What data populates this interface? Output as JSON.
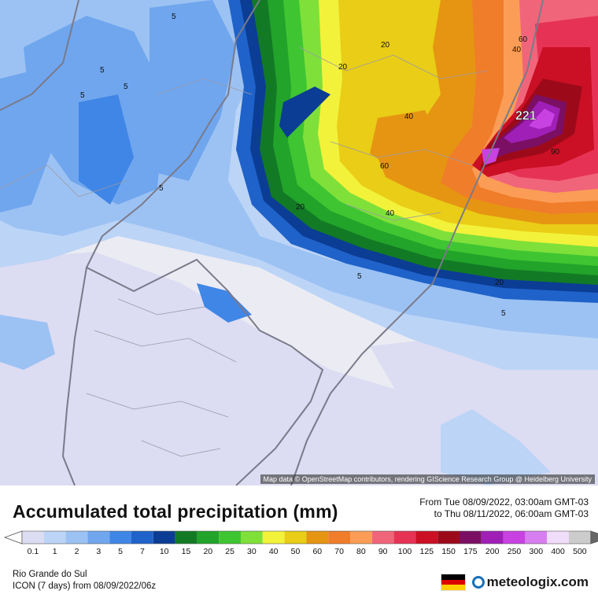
{
  "map": {
    "attribution": "Map data © OpenStreetMap contributors, rendering GIScience Research Group @ Heidelberg University",
    "max_label": "221",
    "contour_labels": [
      "5",
      "5",
      "5",
      "5",
      "5",
      "20",
      "20",
      "20",
      "20",
      "40",
      "40",
      "40",
      "60",
      "60",
      "90",
      "5",
      "5"
    ]
  },
  "title": "Accumulated total precipitation (mm)",
  "time_from": "From Tue 08/09/2022, 03:00am GMT-03",
  "time_to": "to Thu 08/11/2022, 06:00am GMT-03",
  "colorbar": {
    "ticks": [
      "0.1",
      "1",
      "2",
      "3",
      "5",
      "7",
      "10",
      "15",
      "20",
      "25",
      "30",
      "40",
      "50",
      "60",
      "70",
      "80",
      "90",
      "100",
      "125",
      "150",
      "175",
      "200",
      "250",
      "300",
      "400",
      "500"
    ],
    "colors": [
      "#dcdcf2",
      "#bcd4f6",
      "#9cc2f3",
      "#6fa6ee",
      "#3f86e6",
      "#1f62c9",
      "#0b3d94",
      "#127a25",
      "#22a32a",
      "#3fc531",
      "#7fe03a",
      "#f3f23a",
      "#e9cd16",
      "#e69512",
      "#f07d2a",
      "#fb9d56",
      "#f1657a",
      "#e63355",
      "#cb0f24",
      "#9c0a1a",
      "#7b0f63",
      "#9f1fb7",
      "#c842e2",
      "#d77ff0",
      "#f0ddfa",
      "#cccccc"
    ]
  },
  "location": "Rio Grande do Sul",
  "model": "ICON (7 days)  from  08/09/2022/06z",
  "brand": {
    "name": "meteologix.com",
    "flag_colors": [
      "#000000",
      "#dd0000",
      "#ffce00"
    ]
  }
}
